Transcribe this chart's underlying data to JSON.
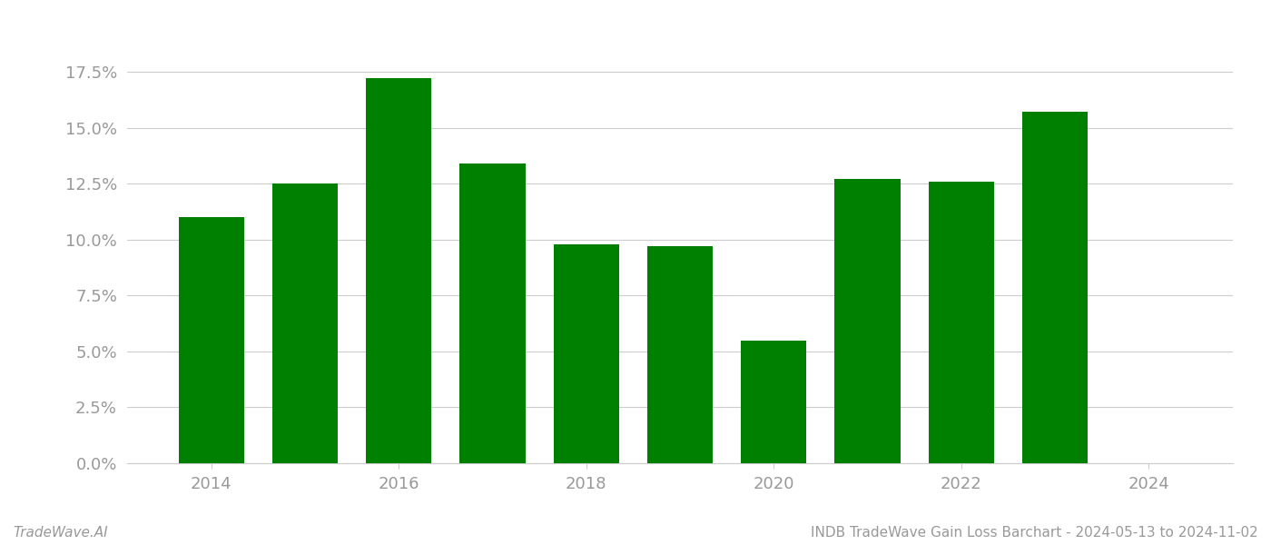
{
  "years": [
    2014,
    2015,
    2016,
    2017,
    2018,
    2019,
    2020,
    2021,
    2022,
    2023
  ],
  "values": [
    0.11,
    0.125,
    0.172,
    0.134,
    0.098,
    0.097,
    0.055,
    0.127,
    0.126,
    0.157
  ],
  "bar_color": "#008000",
  "ylim": [
    0,
    0.19
  ],
  "yticks": [
    0.0,
    0.025,
    0.05,
    0.075,
    0.1,
    0.125,
    0.15,
    0.175
  ],
  "ytick_labels": [
    "0.0%",
    "2.5%",
    "5.0%",
    "7.5%",
    "10.0%",
    "12.5%",
    "15.0%",
    "17.5%"
  ],
  "xtick_years": [
    2014,
    2016,
    2018,
    2020,
    2022,
    2024
  ],
  "xlim": [
    2013.1,
    2024.9
  ],
  "xlabel": "",
  "ylabel": "",
  "footer_left": "TradeWave.AI",
  "footer_right": "INDB TradeWave Gain Loss Barchart - 2024-05-13 to 2024-11-02",
  "background_color": "#ffffff",
  "grid_color": "#cccccc",
  "bar_width": 0.7,
  "tick_label_color": "#999999",
  "footer_color": "#999999",
  "footer_fontsize": 11,
  "ytick_fontsize": 13,
  "xtick_fontsize": 13
}
